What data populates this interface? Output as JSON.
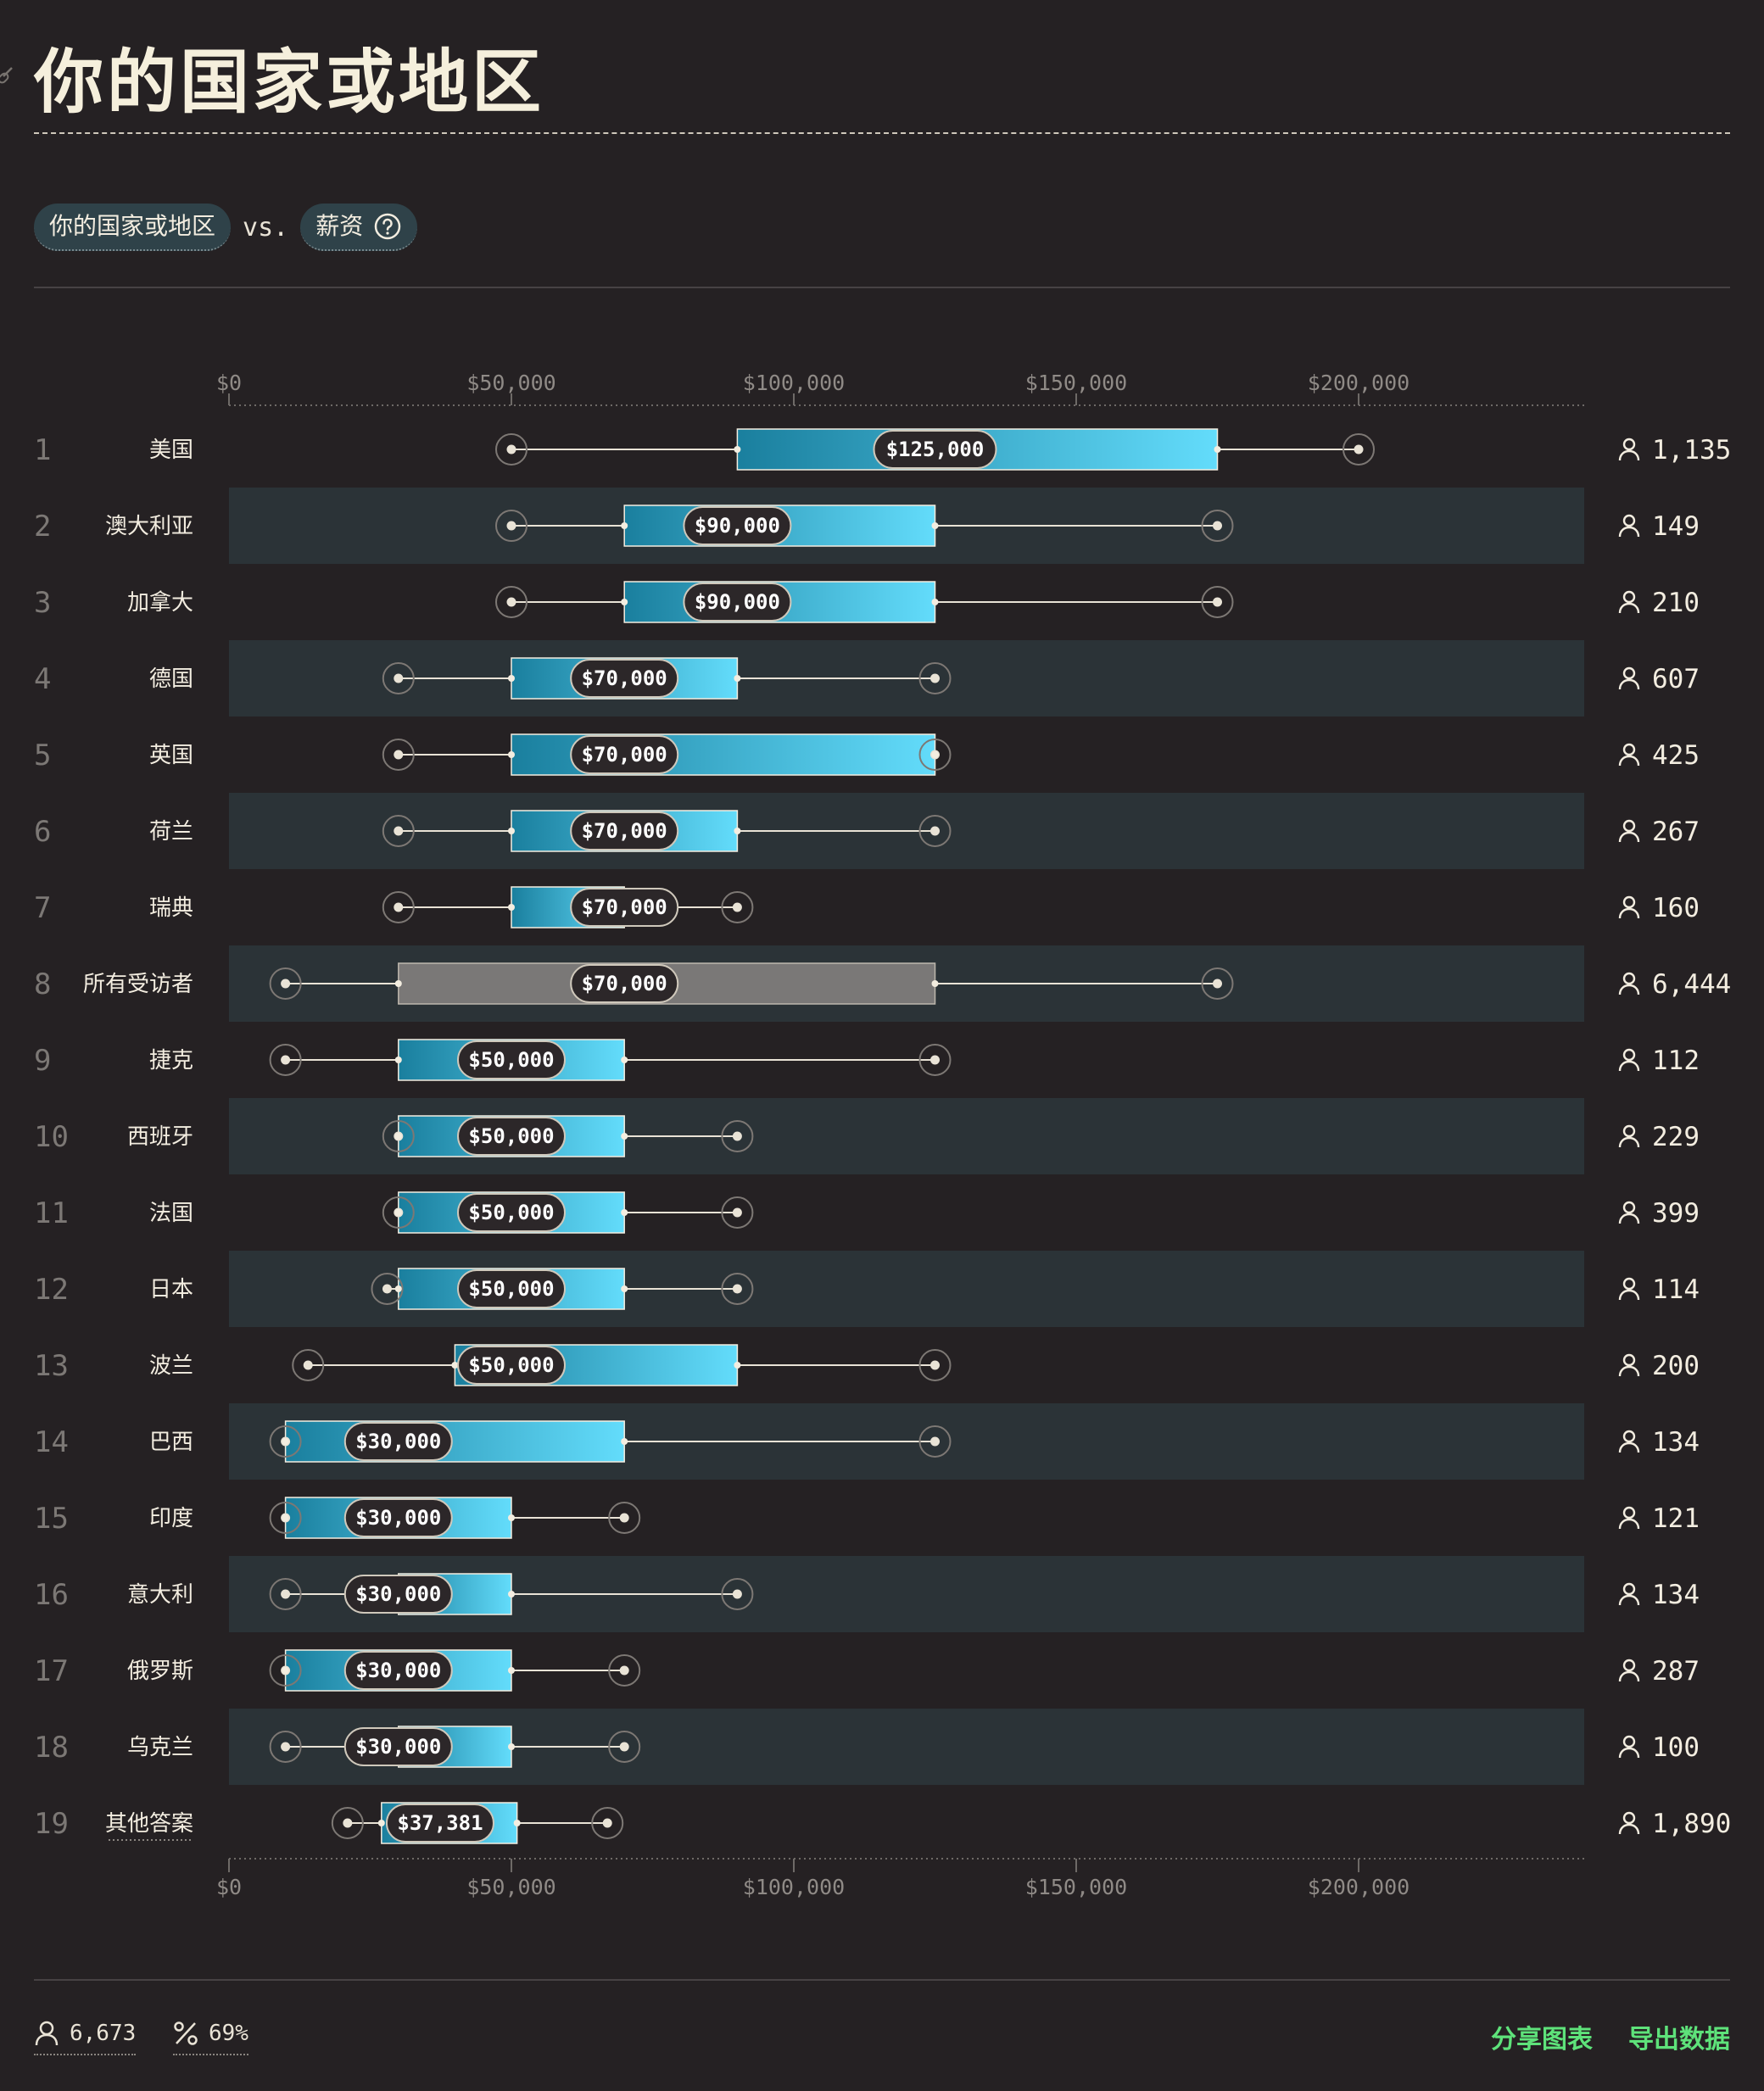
{
  "page": {
    "title": "你的国家或地区",
    "filter": {
      "dimension": "你的国家或地区",
      "vs": "vs.",
      "metric": "薪资"
    },
    "footer": {
      "respondents": "6,673",
      "percent": "69%",
      "share_label": "分享图表",
      "export_label": "导出数据"
    },
    "colors": {
      "bar_start": "#1a7f9e",
      "bar_end": "#63dcfb",
      "overall_bar": "#7a7877",
      "accent_link": "#5ee27a"
    },
    "icons": {
      "respondents": "person-icon",
      "percent": "percent-icon",
      "help": "help-circle-icon",
      "link": "link-icon"
    }
  },
  "chart_data": {
    "type": "box",
    "x_ticks": [
      "$0",
      "$50,000",
      "$100,000",
      "$150,000",
      "$200,000"
    ],
    "x_tick_values": [
      0,
      50000,
      100000,
      150000,
      200000
    ],
    "xlim": [
      0,
      240000
    ],
    "rows": [
      {
        "rank": "1",
        "name": "美国",
        "p10": 50000,
        "q1": 90000,
        "median": 125000,
        "q3": 175000,
        "p90": 200000,
        "median_label": "$125,000",
        "count": "1,135"
      },
      {
        "rank": "2",
        "name": "澳大利亚",
        "p10": 50000,
        "q1": 70000,
        "median": 90000,
        "q3": 125000,
        "p90": 175000,
        "median_label": "$90,000",
        "count": "149"
      },
      {
        "rank": "3",
        "name": "加拿大",
        "p10": 50000,
        "q1": 70000,
        "median": 90000,
        "q3": 125000,
        "p90": 175000,
        "median_label": "$90,000",
        "count": "210"
      },
      {
        "rank": "4",
        "name": "德国",
        "p10": 30000,
        "q1": 50000,
        "median": 70000,
        "q3": 90000,
        "p90": 125000,
        "median_label": "$70,000",
        "count": "607"
      },
      {
        "rank": "5",
        "name": "英国",
        "p10": 30000,
        "q1": 50000,
        "median": 70000,
        "q3": 125000,
        "p90": 125000,
        "median_label": "$70,000",
        "count": "425"
      },
      {
        "rank": "6",
        "name": "荷兰",
        "p10": 30000,
        "q1": 50000,
        "median": 70000,
        "q3": 90000,
        "p90": 125000,
        "median_label": "$70,000",
        "count": "267"
      },
      {
        "rank": "7",
        "name": "瑞典",
        "p10": 30000,
        "q1": 50000,
        "median": 70000,
        "q3": 70000,
        "p90": 90000,
        "median_label": "$70,000",
        "count": "160"
      },
      {
        "rank": "8",
        "name": "所有受访者",
        "p10": 10000,
        "q1": 30000,
        "median": 70000,
        "q3": 125000,
        "p90": 175000,
        "median_label": "$70,000",
        "count": "6,444",
        "overall": true
      },
      {
        "rank": "9",
        "name": "捷克",
        "p10": 10000,
        "q1": 30000,
        "median": 50000,
        "q3": 70000,
        "p90": 125000,
        "median_label": "$50,000",
        "count": "112"
      },
      {
        "rank": "10",
        "name": "西班牙",
        "p10": 30000,
        "q1": 30000,
        "median": 50000,
        "q3": 70000,
        "p90": 90000,
        "median_label": "$50,000",
        "count": "229"
      },
      {
        "rank": "11",
        "name": "法国",
        "p10": 30000,
        "q1": 30000,
        "median": 50000,
        "q3": 70000,
        "p90": 90000,
        "median_label": "$50,000",
        "count": "399"
      },
      {
        "rank": "12",
        "name": "日本",
        "p10": 28000,
        "q1": 30000,
        "median": 50000,
        "q3": 70000,
        "p90": 90000,
        "median_label": "$50,000",
        "count": "114"
      },
      {
        "rank": "13",
        "name": "波兰",
        "p10": 14000,
        "q1": 40000,
        "median": 50000,
        "q3": 90000,
        "p90": 125000,
        "median_label": "$50,000",
        "count": "200"
      },
      {
        "rank": "14",
        "name": "巴西",
        "p10": 10000,
        "q1": 10000,
        "median": 30000,
        "q3": 70000,
        "p90": 125000,
        "median_label": "$30,000",
        "count": "134"
      },
      {
        "rank": "15",
        "name": "印度",
        "p10": 10000,
        "q1": 10000,
        "median": 30000,
        "q3": 50000,
        "p90": 70000,
        "median_label": "$30,000",
        "count": "121"
      },
      {
        "rank": "16",
        "name": "意大利",
        "p10": 10000,
        "q1": 30000,
        "median": 30000,
        "q3": 50000,
        "p90": 90000,
        "median_label": "$30,000",
        "count": "134"
      },
      {
        "rank": "17",
        "name": "俄罗斯",
        "p10": 10000,
        "q1": 10000,
        "median": 30000,
        "q3": 50000,
        "p90": 70000,
        "median_label": "$30,000",
        "count": "287"
      },
      {
        "rank": "18",
        "name": "乌克兰",
        "p10": 10000,
        "q1": 30000,
        "median": 30000,
        "q3": 50000,
        "p90": 70000,
        "median_label": "$30,000",
        "count": "100"
      },
      {
        "rank": "19",
        "name": "其他答案",
        "p10": 21000,
        "q1": 27000,
        "median": 37381,
        "q3": 51000,
        "p90": 67000,
        "median_label": "$37,381",
        "count": "1,890"
      }
    ]
  }
}
